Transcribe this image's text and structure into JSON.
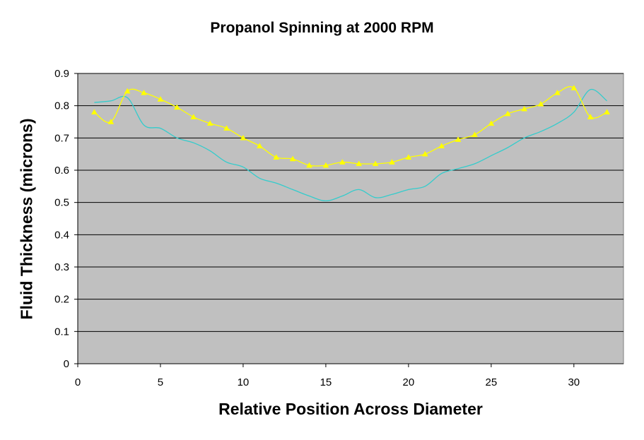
{
  "chart_data": {
    "type": "line",
    "title": "Propanol Spinning at 2000 RPM",
    "xlabel": "Relative Position Across Diameter",
    "ylabel": "Fluid Thickness (microns)",
    "xlim": [
      0,
      33
    ],
    "ylim": [
      0,
      0.9
    ],
    "x_ticks": [
      "0",
      "5",
      "10",
      "15",
      "20",
      "25",
      "30"
    ],
    "y_ticks": [
      "0",
      "0.1",
      "0.2",
      "0.3",
      "0.4",
      "0.5",
      "0.6",
      "0.7",
      "0.8",
      "0.9"
    ],
    "grid": true,
    "plot_background": "#c0c0c0",
    "x": [
      1,
      2,
      3,
      4,
      5,
      6,
      7,
      8,
      9,
      10,
      11,
      12,
      13,
      14,
      15,
      16,
      17,
      18,
      19,
      20,
      21,
      22,
      23,
      24,
      25,
      26,
      27,
      28,
      29,
      30,
      31,
      32
    ],
    "series": [
      {
        "color": "#33cccc",
        "marker": "none",
        "values": [
          0.81,
          0.815,
          0.825,
          0.74,
          0.73,
          0.7,
          0.685,
          0.66,
          0.625,
          0.61,
          0.575,
          0.56,
          0.54,
          0.52,
          0.505,
          0.52,
          0.54,
          0.515,
          0.525,
          0.54,
          0.55,
          0.59,
          0.605,
          0.62,
          0.645,
          0.67,
          0.7,
          0.72,
          0.745,
          0.78,
          0.85,
          0.815
        ]
      },
      {
        "color": "#ffff00",
        "marker": "triangle",
        "values": [
          0.78,
          0.75,
          0.845,
          0.84,
          0.82,
          0.795,
          0.765,
          0.745,
          0.73,
          0.7,
          0.675,
          0.64,
          0.635,
          0.615,
          0.615,
          0.625,
          0.62,
          0.62,
          0.625,
          0.64,
          0.65,
          0.675,
          0.695,
          0.71,
          0.745,
          0.775,
          0.79,
          0.805,
          0.84,
          0.855,
          0.765,
          0.78
        ]
      }
    ]
  }
}
